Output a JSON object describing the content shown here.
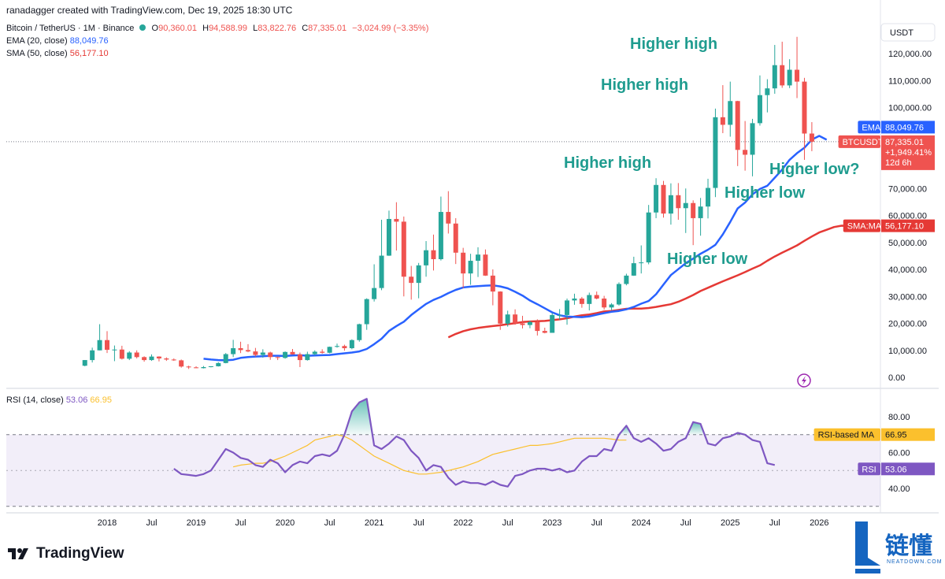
{
  "header": {
    "credit": "ranadagger created with TradingView.com, Dec 19, 2025 18:30 UTC"
  },
  "legend": {
    "symbol": "Bitcoin / TetherUS · 1M · Binance",
    "open_label": "O",
    "open": "90,360.01",
    "high_label": "H",
    "high": "94,588.99",
    "low_label": "L",
    "low": "83,822.76",
    "close_label": "C",
    "close": "87,335.01",
    "change": "−3,024.99 (−3.35%)",
    "ema_label": "EMA (20, close)",
    "ema_value": "88,049.76",
    "sma_label": "SMA (50, close)",
    "sma_value": "56,177.10",
    "rsi_label": "RSI (14, close)",
    "rsi_value": "53.06",
    "rsi_ma_value": "66.95"
  },
  "axis": {
    "currency": "USDT",
    "price_ticks": [
      "120,000.00",
      "110,000.00",
      "100,000.00",
      "70,000.00",
      "60,000.00",
      "50,000.00",
      "40,000.00",
      "30,000.00",
      "20,000.00",
      "10,000.00",
      "0.00"
    ],
    "rsi_ticks": [
      "80.00",
      "60.00",
      "40.00"
    ],
    "time_ticks": [
      "2018",
      "Jul",
      "2019",
      "Jul",
      "2020",
      "Jul",
      "2021",
      "Jul",
      "2022",
      "Jul",
      "2023",
      "Jul",
      "2024",
      "Jul",
      "2025",
      "Jul",
      "2026"
    ]
  },
  "badges": {
    "ema": {
      "label": "EMA",
      "value": "88,049.76"
    },
    "price": {
      "label": "BTCUSDT",
      "value": "87,335.01",
      "change": "+1,949.41%",
      "countdown": "12d 6h"
    },
    "sma": {
      "label": "SMA:MA",
      "value": "56,177.10"
    },
    "rsi_ma": {
      "label": "RSI-based MA",
      "value": "66.95"
    },
    "rsi": {
      "label": "RSI",
      "value": "53.06"
    }
  },
  "annotations": [
    "Higher high",
    "Higher high",
    "Higher high",
    "Higher low?",
    "Higher low",
    "Higher low"
  ],
  "brand": {
    "name": "TradingView"
  },
  "watermark": {
    "text": "链懂",
    "sub": "NEATDOWN.COM"
  },
  "colors": {
    "up": "#26a69a",
    "down": "#ef5350",
    "ema": "#2962ff",
    "sma": "#e53935",
    "rsi": "#7e57c2",
    "rsi_ma": "#fbc02d",
    "annotation": "#1f9c8f"
  },
  "chart_data": {
    "type": "candlestick",
    "interval": "1M",
    "candles": [
      [
        "2017-10",
        4300,
        6400,
        4100,
        6400
      ],
      [
        "2017-11",
        6400,
        11000,
        5500,
        10000
      ],
      [
        "2017-12",
        10000,
        19700,
        10000,
        13800
      ],
      [
        "2018-01",
        13800,
        17100,
        9000,
        10200
      ],
      [
        "2018-02",
        10200,
        11800,
        6000,
        10300
      ],
      [
        "2018-03",
        10300,
        11700,
        6600,
        6900
      ],
      [
        "2018-04",
        6900,
        9700,
        6400,
        9200
      ],
      [
        "2018-05",
        9200,
        10000,
        7000,
        7500
      ],
      [
        "2018-06",
        7500,
        7800,
        5800,
        6400
      ],
      [
        "2018-07",
        6400,
        8500,
        6100,
        7700
      ],
      [
        "2018-08",
        7700,
        7800,
        5900,
        7000
      ],
      [
        "2018-09",
        7000,
        7400,
        6100,
        6600
      ],
      [
        "2018-10",
        6600,
        7000,
        6100,
        6300
      ],
      [
        "2018-11",
        6300,
        6600,
        3600,
        4000
      ],
      [
        "2018-12",
        4000,
        4300,
        3100,
        3700
      ],
      [
        "2019-01",
        3700,
        4100,
        3400,
        3400
      ],
      [
        "2019-02",
        3400,
        4200,
        3300,
        3800
      ],
      [
        "2019-03",
        3800,
        4100,
        3700,
        4100
      ],
      [
        "2019-04",
        4100,
        5600,
        4000,
        5300
      ],
      [
        "2019-05",
        5300,
        9000,
        5200,
        8600
      ],
      [
        "2019-06",
        8600,
        13900,
        7500,
        10800
      ],
      [
        "2019-07",
        10800,
        13200,
        9000,
        10100
      ],
      [
        "2019-08",
        10100,
        12300,
        9300,
        9600
      ],
      [
        "2019-09",
        9600,
        10900,
        7700,
        8300
      ],
      [
        "2019-10",
        8300,
        10400,
        7300,
        9200
      ],
      [
        "2019-11",
        9200,
        9500,
        6500,
        7500
      ],
      [
        "2019-12",
        7500,
        7700,
        6400,
        7200
      ],
      [
        "2020-01",
        7200,
        9600,
        6900,
        9400
      ],
      [
        "2020-02",
        9400,
        10500,
        8400,
        8500
      ],
      [
        "2020-03",
        8500,
        9200,
        3800,
        6400
      ],
      [
        "2020-04",
        6400,
        9500,
        6200,
        8600
      ],
      [
        "2020-05",
        8600,
        10000,
        8100,
        9500
      ],
      [
        "2020-06",
        9500,
        10400,
        8800,
        9100
      ],
      [
        "2020-07",
        9100,
        11400,
        8900,
        11300
      ],
      [
        "2020-08",
        11300,
        12500,
        11000,
        11600
      ],
      [
        "2020-09",
        11600,
        12100,
        9900,
        10800
      ],
      [
        "2020-10",
        10800,
        14100,
        10400,
        13800
      ],
      [
        "2020-11",
        13800,
        19900,
        13200,
        19700
      ],
      [
        "2020-12",
        19700,
        29300,
        17600,
        29000
      ],
      [
        "2021-01",
        29000,
        41900,
        28100,
        33100
      ],
      [
        "2021-02",
        33100,
        58400,
        32300,
        45100
      ],
      [
        "2021-03",
        45100,
        61800,
        45000,
        58700
      ],
      [
        "2021-04",
        58700,
        64900,
        47000,
        57700
      ],
      [
        "2021-05",
        57700,
        59600,
        30000,
        37300
      ],
      [
        "2021-06",
        37300,
        41300,
        28800,
        35000
      ],
      [
        "2021-07",
        35000,
        42400,
        29300,
        41500
      ],
      [
        "2021-08",
        41500,
        50500,
        37300,
        47100
      ],
      [
        "2021-09",
        47100,
        52900,
        39600,
        43800
      ],
      [
        "2021-10",
        43800,
        67000,
        43300,
        61300
      ],
      [
        "2021-11",
        61300,
        69000,
        53300,
        57000
      ],
      [
        "2021-12",
        57000,
        59000,
        42000,
        46200
      ],
      [
        "2022-01",
        46200,
        48000,
        33000,
        38500
      ],
      [
        "2022-02",
        38500,
        45800,
        34300,
        43200
      ],
      [
        "2022-03",
        43200,
        48200,
        37200,
        45500
      ],
      [
        "2022-04",
        45500,
        47400,
        37600,
        37700
      ],
      [
        "2022-05",
        37700,
        40000,
        26700,
        31800
      ],
      [
        "2022-06",
        31800,
        31900,
        17600,
        19900
      ],
      [
        "2022-07",
        19900,
        24700,
        18800,
        23300
      ],
      [
        "2022-08",
        23300,
        25200,
        19500,
        20000
      ],
      [
        "2022-09",
        20000,
        22800,
        18100,
        19400
      ],
      [
        "2022-10",
        19400,
        21000,
        18200,
        20500
      ],
      [
        "2022-11",
        20500,
        21500,
        15500,
        17200
      ],
      [
        "2022-12",
        17200,
        18400,
        16300,
        16500
      ],
      [
        "2023-01",
        16500,
        23900,
        16500,
        23100
      ],
      [
        "2023-02",
        23100,
        25300,
        21300,
        23100
      ],
      [
        "2023-03",
        23100,
        29200,
        19500,
        28500
      ],
      [
        "2023-04",
        28500,
        31000,
        26900,
        29200
      ],
      [
        "2023-05",
        29200,
        29800,
        25800,
        27200
      ],
      [
        "2023-06",
        27200,
        31400,
        24800,
        30500
      ],
      [
        "2023-07",
        30500,
        31800,
        28900,
        29200
      ],
      [
        "2023-08",
        29200,
        30200,
        25100,
        25900
      ],
      [
        "2023-09",
        25900,
        27500,
        24900,
        27000
      ],
      [
        "2023-10",
        27000,
        35200,
        26600,
        34600
      ],
      [
        "2023-11",
        34600,
        38400,
        34100,
        37700
      ],
      [
        "2023-12",
        37700,
        44700,
        37600,
        42300
      ],
      [
        "2024-01",
        42300,
        48900,
        38500,
        42600
      ],
      [
        "2024-02",
        42600,
        63900,
        41900,
        61100
      ],
      [
        "2024-03",
        61100,
        73800,
        59000,
        71300
      ],
      [
        "2024-04",
        71300,
        72800,
        59200,
        60700
      ],
      [
        "2024-05",
        60700,
        71900,
        56600,
        67500
      ],
      [
        "2024-06",
        67500,
        72000,
        58400,
        62700
      ],
      [
        "2024-07",
        62700,
        70000,
        53500,
        64600
      ],
      [
        "2024-08",
        64600,
        65600,
        49000,
        59000
      ],
      [
        "2024-09",
        59000,
        66500,
        52500,
        63300
      ],
      [
        "2024-10",
        63300,
        73600,
        58900,
        70200
      ],
      [
        "2024-11",
        70200,
        99600,
        66800,
        96400
      ],
      [
        "2024-12",
        96400,
        108300,
        90500,
        93600
      ],
      [
        "2025-01",
        93600,
        109600,
        89200,
        102400
      ],
      [
        "2025-02",
        102400,
        102500,
        78300,
        84300
      ],
      [
        "2025-03",
        84300,
        95000,
        76600,
        82500
      ],
      [
        "2025-04",
        82500,
        95800,
        74500,
        94200
      ],
      [
        "2025-05",
        94200,
        111900,
        93300,
        104600
      ],
      [
        "2025-06",
        104600,
        110500,
        98200,
        107100
      ],
      [
        "2025-07",
        107100,
        123200,
        105100,
        115700
      ],
      [
        "2025-08",
        115700,
        124400,
        107300,
        108200
      ],
      [
        "2025-09",
        108200,
        117900,
        107200,
        114000
      ],
      [
        "2025-10",
        114000,
        126200,
        103500,
        109600
      ],
      [
        "2025-11",
        109600,
        111000,
        80600,
        90360
      ],
      [
        "2025-12",
        90360,
        94589,
        83823,
        87335
      ]
    ],
    "ema20_start": "2019-02",
    "ema20": [
      6900,
      6600,
      6400,
      6300,
      6500,
      7200,
      7500,
      7700,
      7800,
      8000,
      8000,
      7900,
      8100,
      8200,
      8000,
      8100,
      8200,
      8300,
      8600,
      8900,
      9200,
      9600,
      10500,
      12300,
      14300,
      17200,
      19000,
      20600,
      23100,
      25200,
      27200,
      28700,
      29800,
      31200,
      32400,
      33300,
      33600,
      33800,
      34000,
      34100,
      33700,
      33000,
      31700,
      30300,
      28500,
      27100,
      25600,
      24100,
      23000,
      22500,
      22400,
      22300,
      22600,
      23200,
      23800,
      24300,
      24600,
      25200,
      26100,
      27300,
      28300,
      30800,
      34400,
      37900,
      40100,
      42300,
      44000,
      45800,
      47300,
      49100,
      53000,
      57600,
      62600,
      64800,
      67800,
      69800,
      71000,
      74000,
      77000,
      80600,
      83100,
      85100,
      88100,
      89500,
      88050
    ],
    "sma50_start": "2021-11",
    "sma50": [
      14800,
      16100,
      17100,
      17800,
      18300,
      18700,
      19000,
      19300,
      19700,
      20100,
      20500,
      20700,
      20800,
      20900,
      21200,
      21500,
      21900,
      22500,
      23000,
      23300,
      23800,
      24400,
      24600,
      25000,
      25400,
      25500,
      25500,
      25700,
      26100,
      26600,
      27100,
      28000,
      29200,
      30500,
      32000,
      33200,
      34400,
      35600,
      36700,
      37800,
      39000,
      40300,
      41500,
      43200,
      44800,
      46200,
      47500,
      48900,
      50600,
      52200,
      53700,
      54700,
      55700,
      56200,
      56177
    ],
    "rsi_start": "2018-10",
    "rsi": [
      51,
      48,
      47.5,
      47,
      48,
      50,
      56,
      62,
      60,
      57,
      56,
      53,
      52,
      56,
      54,
      49,
      53,
      55,
      54,
      58,
      59,
      58,
      61,
      70,
      83,
      88,
      90,
      64,
      62,
      65,
      69,
      67,
      61,
      57,
      50,
      53,
      52,
      46,
      42,
      44,
      43,
      43,
      42,
      44,
      42,
      41,
      47,
      48,
      50,
      51,
      51,
      50,
      51,
      49,
      50,
      55,
      58,
      58,
      62,
      61,
      70,
      75,
      68,
      66,
      68,
      65,
      61,
      62,
      66,
      68,
      77,
      76,
      65,
      64,
      68,
      69,
      71,
      70,
      67,
      66,
      54,
      53.06
    ],
    "rsi_ma_start": "2019-06",
    "rsi_ma": [
      52,
      53,
      53.5,
      54,
      54,
      55,
      56.5,
      58,
      60,
      62,
      64,
      67,
      68,
      69,
      70,
      69,
      67,
      64,
      61,
      58,
      56,
      54,
      52,
      50,
      49,
      48,
      48,
      48.5,
      49,
      50,
      51,
      52,
      53.5,
      55,
      57,
      59,
      60,
      61,
      62,
      63,
      64,
      64,
      64.5,
      65,
      66,
      67,
      68,
      68,
      68,
      68,
      68,
      67.5,
      67,
      66.95
    ],
    "ylim": [
      0,
      130000
    ],
    "rsi_lim": [
      25,
      100
    ],
    "rsi_levels": [
      70,
      50,
      30
    ],
    "rsi_overbought": 70
  }
}
